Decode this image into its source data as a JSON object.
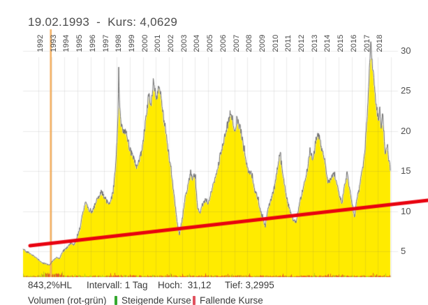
{
  "header": {
    "title": "19.02.1993  -  Kurs: 4,0629"
  },
  "footer": {
    "change_label": "843,2%HL",
    "interval_label": "Intervall: 1 Tag",
    "high_label": "Hoch:  31,12",
    "low_label": "Tief: 3,2995",
    "volume_label": "Volumen (rot-grün)",
    "legend_rising": "Steigende Kurse",
    "legend_falling": "Fallende Kurse"
  },
  "colors": {
    "area_fill": "#ffeb00",
    "price_line": "#696969",
    "trend_line": "#e8000f",
    "date_marker": "#f3ae5e",
    "grid": "rgba(100,100,100,0.13)",
    "volume_down": "rgba(222,60,46,0.9)",
    "volume_up": "rgba(120,180,40,0.55)",
    "legend_green": "#35a82f",
    "legend_red": "#e0525e",
    "text_primary": "#4d4d4d",
    "text_footer": "#3a3a3a"
  },
  "chart_data": {
    "type": "area",
    "title": "19.02.1993 - Kurs: 4,0629",
    "interval": "1 Tag",
    "high": 31.12,
    "low": 3.2995,
    "change_pct_hl": "843,2%",
    "last_visible_value": 15.5,
    "x_ticks": [
      1992,
      1993,
      1994,
      1995,
      1996,
      1997,
      1998,
      1999,
      2000,
      2001,
      2002,
      2003,
      2004,
      2005,
      2006,
      2007,
      2008,
      2009,
      2010,
      2011,
      2012,
      2013,
      2014,
      2015,
      2016,
      2017,
      2018
    ],
    "y_ticks": [
      5,
      10,
      15,
      20,
      25,
      30
    ],
    "xlim": [
      1990.8,
      2019.0
    ],
    "ylim": [
      2.3,
      31.5
    ],
    "grid": true,
    "legend_position": "bottom",
    "date_marker_year": 1992.95,
    "trendline": {
      "points": [
        [
          1991.36,
          5.7
        ],
        [
          2021.84,
          11.35
        ]
      ]
    },
    "series": [
      {
        "name": "Kurs",
        "points": [
          [
            1990.82,
            5.3
          ],
          [
            1991.2,
            4.9
          ],
          [
            1991.63,
            4.4
          ],
          [
            1992.0,
            4.0
          ],
          [
            1992.27,
            3.6
          ],
          [
            1992.53,
            3.45
          ],
          [
            1992.86,
            3.3
          ],
          [
            1993.07,
            3.8
          ],
          [
            1993.34,
            4.2
          ],
          [
            1993.6,
            4.0
          ],
          [
            1993.87,
            5.0
          ],
          [
            1994.25,
            5.6
          ],
          [
            1994.51,
            6.0
          ],
          [
            1994.73,
            5.7
          ],
          [
            1994.94,
            6.6
          ],
          [
            1995.21,
            8.0
          ],
          [
            1995.58,
            11.1
          ],
          [
            1995.85,
            10.2
          ],
          [
            1996.12,
            9.7
          ],
          [
            1996.44,
            11.2
          ],
          [
            1996.81,
            12.4
          ],
          [
            1997.08,
            11.6
          ],
          [
            1997.45,
            10.9
          ],
          [
            1997.72,
            12.5
          ],
          [
            1997.94,
            16.0
          ],
          [
            1998.1,
            22.0
          ],
          [
            1998.15,
            28.4
          ],
          [
            1998.2,
            24.0
          ],
          [
            1998.31,
            21.0
          ],
          [
            1998.47,
            19.5
          ],
          [
            1998.68,
            20.3
          ],
          [
            1998.95,
            18.0
          ],
          [
            1999.22,
            17.0
          ],
          [
            1999.54,
            15.2
          ],
          [
            1999.75,
            16.5
          ],
          [
            2000.02,
            18.5
          ],
          [
            2000.29,
            22.0
          ],
          [
            2000.45,
            24.5
          ],
          [
            2000.61,
            23.0
          ],
          [
            2000.82,
            26.3
          ],
          [
            2001.04,
            24.0
          ],
          [
            2001.25,
            25.8
          ],
          [
            2001.41,
            24.2
          ],
          [
            2001.63,
            21.0
          ],
          [
            2001.79,
            19.8
          ],
          [
            2001.89,
            18.0
          ],
          [
            2002.16,
            15.5
          ],
          [
            2002.43,
            11.5
          ],
          [
            2002.64,
            8.5
          ],
          [
            2002.8,
            7.0
          ],
          [
            2003.02,
            9.0
          ],
          [
            2003.23,
            11.5
          ],
          [
            2003.44,
            13.0
          ],
          [
            2003.66,
            15.0
          ],
          [
            2003.82,
            14.0
          ],
          [
            2003.98,
            14.8
          ],
          [
            2004.19,
            10.5
          ],
          [
            2004.35,
            9.8
          ],
          [
            2004.57,
            10.8
          ],
          [
            2004.78,
            11.5
          ],
          [
            2005.0,
            11.0
          ],
          [
            2005.26,
            12.5
          ],
          [
            2005.53,
            14.0
          ],
          [
            2005.8,
            16.0
          ],
          [
            2006.06,
            18.0
          ],
          [
            2006.28,
            19.5
          ],
          [
            2006.49,
            21.0
          ],
          [
            2006.71,
            22.8
          ],
          [
            2006.87,
            21.5
          ],
          [
            2007.03,
            20.0
          ],
          [
            2007.24,
            21.5
          ],
          [
            2007.46,
            20.5
          ],
          [
            2007.67,
            18.5
          ],
          [
            2007.88,
            16.5
          ],
          [
            2008.1,
            15.0
          ],
          [
            2008.31,
            14.6
          ],
          [
            2008.53,
            13.0
          ],
          [
            2008.74,
            12.0
          ],
          [
            2008.95,
            10.5
          ],
          [
            2009.17,
            9.0
          ],
          [
            2009.38,
            8.0
          ],
          [
            2009.54,
            10.0
          ],
          [
            2009.7,
            10.8
          ],
          [
            2009.91,
            12.0
          ],
          [
            2010.13,
            13.5
          ],
          [
            2010.34,
            15.5
          ],
          [
            2010.5,
            17.3
          ],
          [
            2010.66,
            15.5
          ],
          [
            2010.88,
            13.0
          ],
          [
            2011.09,
            11.0
          ],
          [
            2011.31,
            10.0
          ],
          [
            2011.52,
            9.0
          ],
          [
            2011.73,
            8.7
          ],
          [
            2011.95,
            10.5
          ],
          [
            2012.16,
            12.0
          ],
          [
            2012.37,
            13.5
          ],
          [
            2012.59,
            15.0
          ],
          [
            2012.8,
            17.5
          ],
          [
            2013.02,
            16.5
          ],
          [
            2013.23,
            18.5
          ],
          [
            2013.44,
            19.8
          ],
          [
            2013.66,
            18.0
          ],
          [
            2013.87,
            16.5
          ],
          [
            2014.03,
            15.0
          ],
          [
            2014.19,
            13.4
          ],
          [
            2014.4,
            14.2
          ],
          [
            2014.62,
            14.8
          ],
          [
            2014.83,
            13.5
          ],
          [
            2015.05,
            12.0
          ],
          [
            2015.26,
            10.8
          ],
          [
            2015.42,
            13.0
          ],
          [
            2015.64,
            14.6
          ],
          [
            2015.8,
            13.0
          ],
          [
            2016.01,
            11.0
          ],
          [
            2016.22,
            9.1
          ],
          [
            2016.38,
            11.5
          ],
          [
            2016.54,
            12.5
          ],
          [
            2016.7,
            14.0
          ],
          [
            2016.86,
            15.5
          ],
          [
            2017.02,
            18.0
          ],
          [
            2017.18,
            22.0
          ],
          [
            2017.34,
            27.0
          ],
          [
            2017.45,
            30.9
          ],
          [
            2017.5,
            30.6
          ],
          [
            2017.61,
            28.0
          ],
          [
            2017.77,
            25.0
          ],
          [
            2017.93,
            23.0
          ],
          [
            2018.04,
            21.0
          ],
          [
            2018.14,
            23.3
          ],
          [
            2018.25,
            20.0
          ],
          [
            2018.36,
            22.5
          ],
          [
            2018.47,
            19.5
          ],
          [
            2018.57,
            16.8
          ],
          [
            2018.68,
            18.5
          ],
          [
            2018.79,
            17.0
          ],
          [
            2018.95,
            15.5
          ]
        ]
      }
    ]
  }
}
